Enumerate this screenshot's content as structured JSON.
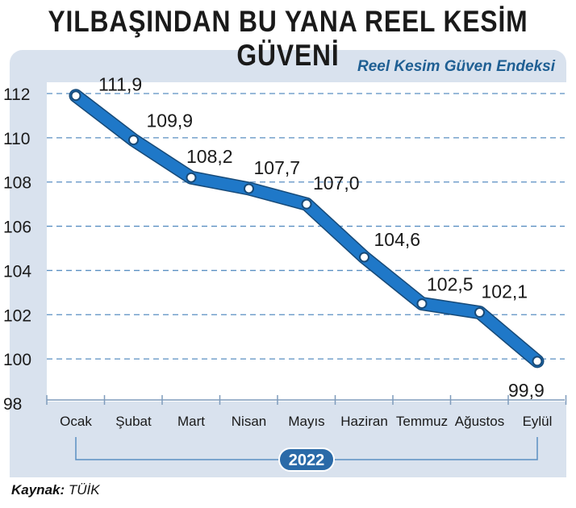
{
  "header": {
    "title": "YILBAŞINDAN BU YANA REEL KESİM GÜVENİ",
    "subtitle": "Reel Kesim Güven Endeksi"
  },
  "footer": {
    "source_label": "Kaynak:",
    "source_value": "TÜİK"
  },
  "chart_data": {
    "type": "line",
    "title": "YILBAŞINDAN BU YANA REEL KESİM GÜVENİ",
    "subtitle": "Reel Kesim Güven Endeksi",
    "categories": [
      "Ocak",
      "Şubat",
      "Mart",
      "Nisan",
      "Mayıs",
      "Haziran",
      "Temmuz",
      "Ağustos",
      "Eylül"
    ],
    "series": [
      {
        "name": "Reel Kesim Güven Endeksi",
        "values": [
          111.9,
          109.9,
          108.2,
          107.7,
          107.0,
          104.6,
          102.5,
          102.1,
          99.9
        ],
        "labels": [
          "111,9",
          "109,9",
          "108,2",
          "107,7",
          "107,0",
          "104,6",
          "102,5",
          "102,1",
          "99,9"
        ]
      }
    ],
    "y_ticks": [
      98,
      100,
      102,
      104,
      106,
      108,
      110,
      112
    ],
    "ylim": [
      98,
      112
    ],
    "x_group_label": "2022",
    "grid": true,
    "line_color": "#1f78c8",
    "line_outline_color": "#174a78",
    "grid_color": "#5a8fc2",
    "background_color": "#ffffff",
    "panel_color": "#d9e2ee"
  }
}
